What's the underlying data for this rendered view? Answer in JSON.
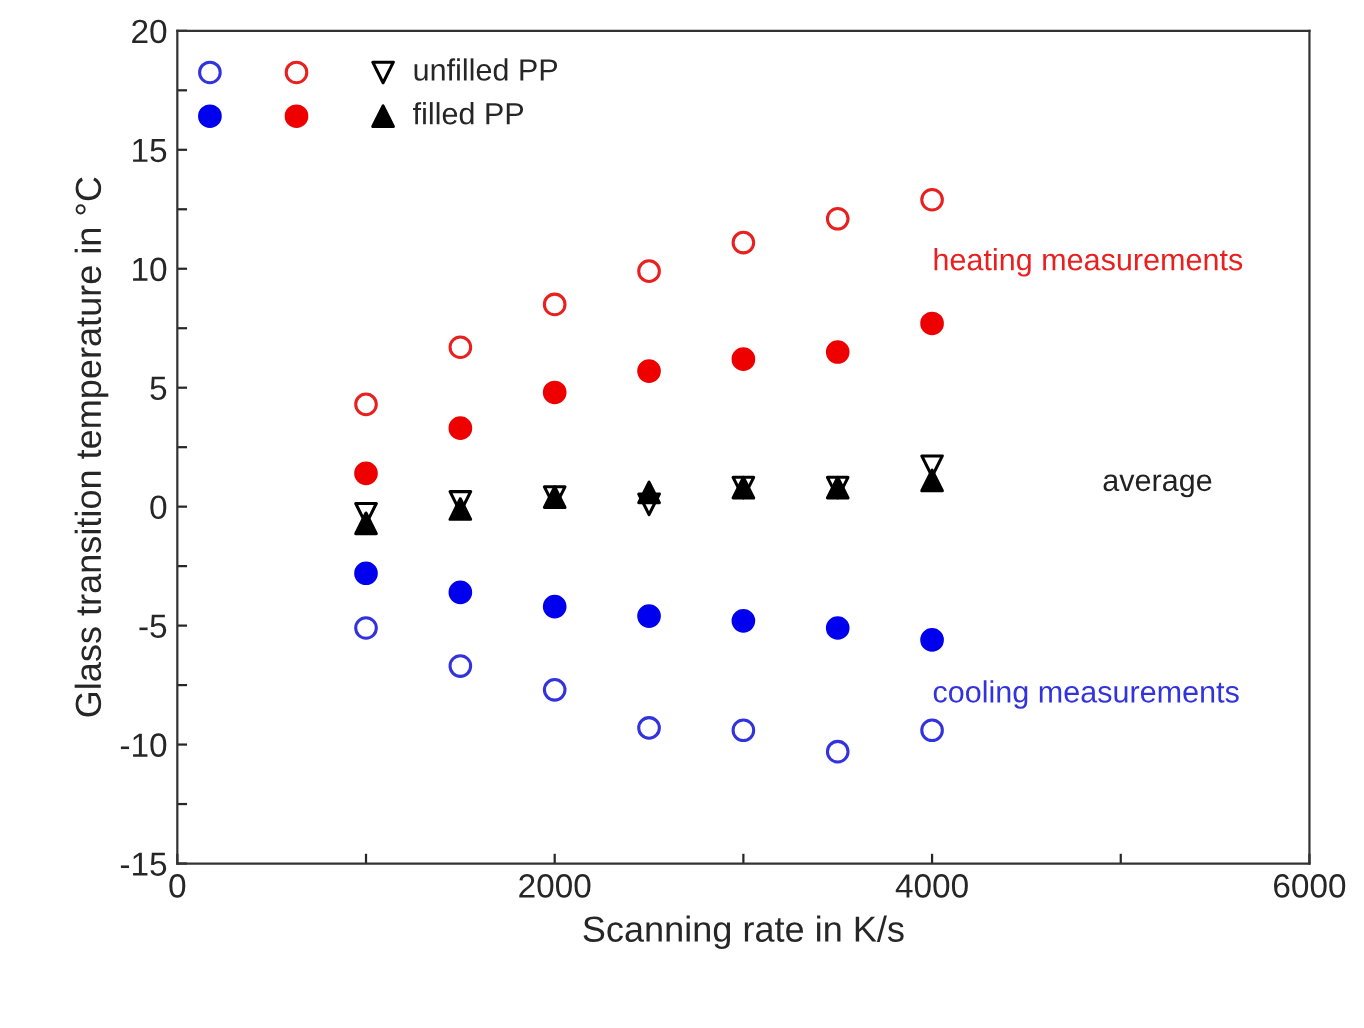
{
  "chart_data": {
    "type": "scatter",
    "xlabel": "Scanning rate in K/s",
    "ylabel": "Glass transition temperature in °C",
    "x": [
      1000,
      1500,
      2000,
      2500,
      3000,
      3500,
      4000
    ],
    "series": [
      {
        "color": "#3333dd",
        "marker": "circle-open",
        "values": [
          -5.1,
          -6.7,
          -7.7,
          -9.3,
          -9.4,
          -10.3,
          -9.4
        ]
      },
      {
        "color": "#e82020",
        "marker": "circle-open",
        "values": [
          4.3,
          6.7,
          8.5,
          9.9,
          11.1,
          12.1,
          12.9
        ]
      },
      {
        "name": "unfilled PP",
        "color": "#000000",
        "marker": "triangle_down-open",
        "values": [
          -0.3,
          0.2,
          0.4,
          0.1,
          0.8,
          0.8,
          1.7
        ]
      },
      {
        "color": "#0000ee",
        "marker": "circle",
        "values": [
          -2.8,
          -3.6,
          -4.2,
          -4.6,
          -4.8,
          -5.1,
          -5.6
        ]
      },
      {
        "color": "#ee0000",
        "marker": "circle",
        "values": [
          1.4,
          3.3,
          4.8,
          5.7,
          6.2,
          6.5,
          7.7
        ]
      },
      {
        "name": "filled PP",
        "color": "#000000",
        "marker": "triangle",
        "values": [
          -0.7,
          -0.1,
          0.4,
          0.6,
          0.8,
          0.8,
          1.1
        ]
      }
    ],
    "annotations": [
      "heating measurements",
      "average",
      "cooling measurements"
    ],
    "xlim": [
      0,
      6000
    ],
    "ylim": [
      -15,
      20
    ],
    "xticks": [
      0,
      {
        "value": 1000,
        "label": null
      },
      2000,
      {
        "value": 3000,
        "label": null
      },
      4000,
      {
        "value": 5000,
        "label": null
      },
      6000
    ],
    "yticks": [
      -15,
      {
        "value": -12.5,
        "label": null
      },
      -10,
      {
        "value": -7.5,
        "label": null
      },
      -5,
      {
        "value": -2.5,
        "label": null
      },
      0,
      {
        "value": 2.5,
        "label": null
      },
      5,
      {
        "value": 7.5,
        "label": null
      },
      10,
      {
        "value": 12.5,
        "label": null
      },
      15,
      {
        "value": 17.5,
        "label": null
      },
      20
    ],
    "grid": false,
    "legend": "top left"
  }
}
